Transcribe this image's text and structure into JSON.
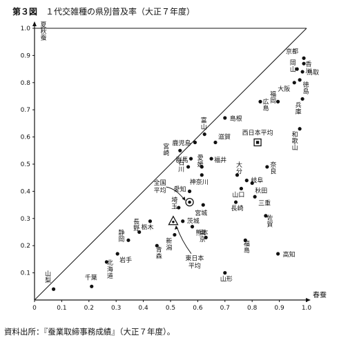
{
  "figure": {
    "number": "第３図",
    "title": "１代交雑種の県別普及率（大正７年度）",
    "source": "資料出所：『蚕業取締事務成績』（大正７年度）。"
  },
  "chart_data": {
    "type": "scatter",
    "title": "１代交雑種の県別普及率（大正７年度）",
    "xlabel": "春蚕",
    "ylabel": "夏秋蚕",
    "xlim": [
      0,
      1.0
    ],
    "ylim": [
      0,
      1.0
    ],
    "xticks": [
      "0",
      "0.1",
      "0.2",
      "0.3",
      "0.4",
      "0.5",
      "0.6",
      "0.7",
      "0.8",
      "0.9",
      "1.0"
    ],
    "yticks": [
      "0.1",
      "0.2",
      "0.3",
      "0.4",
      "0.5",
      "0.6",
      "0.7",
      "0.8",
      "0.9",
      "1.0"
    ],
    "diagonal": true,
    "points": [
      {
        "label": "京都",
        "x": 0.99,
        "y": 0.89
      },
      {
        "label": "香川",
        "x": 0.99,
        "y": 0.87
      },
      {
        "label": "鳥取",
        "x": 0.985,
        "y": 0.84
      },
      {
        "label": "岡山",
        "x": 0.965,
        "y": 0.85
      },
      {
        "label": "徳島",
        "x": 0.975,
        "y": 0.81
      },
      {
        "label": "大阪",
        "x": 0.955,
        "y": 0.8
      },
      {
        "label": "兵庫",
        "x": 0.985,
        "y": 0.74
      },
      {
        "label": "福岡",
        "x": 0.895,
        "y": 0.73
      },
      {
        "label": "広島",
        "x": 0.83,
        "y": 0.73
      },
      {
        "label": "和歌山",
        "x": 0.975,
        "y": 0.63
      },
      {
        "label": "島根",
        "x": 0.7,
        "y": 0.67
      },
      {
        "label": "富山",
        "x": 0.625,
        "y": 0.61
      },
      {
        "label": "鹿児島",
        "x": 0.59,
        "y": 0.58
      },
      {
        "label": "滋賀",
        "x": 0.665,
        "y": 0.58
      },
      {
        "label": "宮崎",
        "x": 0.535,
        "y": 0.55
      },
      {
        "label": "群馬",
        "x": 0.575,
        "y": 0.52
      },
      {
        "label": "福井",
        "x": 0.65,
        "y": 0.52
      },
      {
        "label": "石川",
        "x": 0.565,
        "y": 0.49
      },
      {
        "label": "愛媛",
        "x": 0.615,
        "y": 0.49
      },
      {
        "label": "神奈川",
        "x": 0.615,
        "y": 0.46
      },
      {
        "label": "大分",
        "x": 0.745,
        "y": 0.46
      },
      {
        "label": "奈良",
        "x": 0.855,
        "y": 0.49
      },
      {
        "label": "岐阜",
        "x": 0.78,
        "y": 0.44
      },
      {
        "label": "秋田",
        "x": 0.8,
        "y": 0.43
      },
      {
        "label": "愛知",
        "x": 0.57,
        "y": 0.4
      },
      {
        "label": "山口",
        "x": 0.76,
        "y": 0.41
      },
      {
        "label": "三重",
        "x": 0.81,
        "y": 0.38
      },
      {
        "label": "長崎",
        "x": 0.74,
        "y": 0.36
      },
      {
        "label": "埼玉",
        "x": 0.53,
        "y": 0.34
      },
      {
        "label": "宮城",
        "x": 0.62,
        "y": 0.35
      },
      {
        "label": "佐賀",
        "x": 0.85,
        "y": 0.31
      },
      {
        "label": "茨城",
        "x": 0.545,
        "y": 0.29
      },
      {
        "label": "熊本",
        "x": 0.58,
        "y": 0.27
      },
      {
        "label": "栃木",
        "x": 0.425,
        "y": 0.29
      },
      {
        "label": "長野",
        "x": 0.385,
        "y": 0.25
      },
      {
        "label": "新潟",
        "x": 0.515,
        "y": 0.24
      },
      {
        "label": "東京",
        "x": 0.63,
        "y": 0.23
      },
      {
        "label": "静岡",
        "x": 0.345,
        "y": 0.22
      },
      {
        "label": "青森",
        "x": 0.45,
        "y": 0.2
      },
      {
        "label": "福島",
        "x": 0.775,
        "y": 0.22
      },
      {
        "label": "岩手",
        "x": 0.305,
        "y": 0.17
      },
      {
        "label": "高知",
        "x": 0.895,
        "y": 0.17
      },
      {
        "label": "北海道",
        "x": 0.265,
        "y": 0.14
      },
      {
        "label": "千葉",
        "x": 0.21,
        "y": 0.05
      },
      {
        "label": "山梨",
        "x": 0.07,
        "y": 0.04
      },
      {
        "label": "山形",
        "x": 0.7,
        "y": 0.1
      }
    ],
    "markers": [
      {
        "label": "西日本平均",
        "x": 0.82,
        "y": 0.58,
        "shape": "square"
      },
      {
        "label": "全国平均",
        "x": 0.57,
        "y": 0.36,
        "shape": "circle"
      },
      {
        "label": "東日本平均",
        "x": 0.51,
        "y": 0.29,
        "shape": "triangle"
      }
    ]
  }
}
